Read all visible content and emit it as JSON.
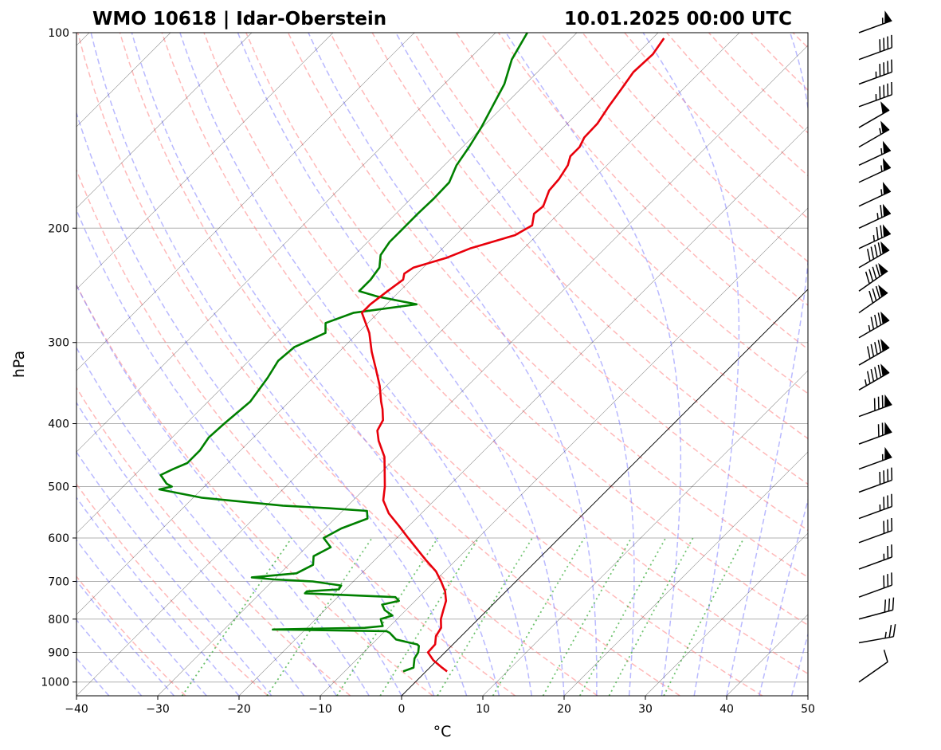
{
  "chart_data": {
    "type": "skew-t log-p sounding",
    "station_title": "WMO 10618 | Idar-Oberstein",
    "time_title": "10.01.2025 00:00 UTC",
    "xlabel": "°C",
    "ylabel": "hPa",
    "xlim": [
      -40,
      50
    ],
    "ylim_hPa": [
      1050,
      100
    ],
    "y_scale": "log",
    "x_ticks": [
      -40,
      -30,
      -20,
      -10,
      0,
      10,
      20,
      30,
      40,
      50
    ],
    "x_tick_labels": [
      "−40",
      "−30",
      "−20",
      "−10",
      "0",
      "10",
      "20",
      "30",
      "40",
      "50"
    ],
    "y_ticks": [
      1000,
      900,
      800,
      700,
      600,
      500,
      400,
      300,
      200,
      100
    ],
    "y_tick_labels": [
      "1000",
      "900",
      "800",
      "700",
      "600",
      "500",
      "400",
      "300",
      "200",
      "100"
    ],
    "grid": true,
    "colors": {
      "temperature": "#e8000b",
      "dewpoint": "#008000",
      "dry_adiabats": "#ff8080",
      "moist_adiabats": "#8080ff",
      "mixing_ratio": "#33aa33",
      "isotherms": "#000000",
      "grid": "#b0b0b0"
    },
    "temperature": {
      "p": [
        963,
        950,
        925,
        900,
        875,
        850,
        825,
        800,
        775,
        750,
        725,
        700,
        675,
        650,
        600,
        575,
        550,
        525,
        500,
        475,
        450,
        425,
        410,
        395,
        380,
        370,
        350,
        330,
        310,
        290,
        270,
        262,
        250,
        240,
        235,
        230,
        222,
        215,
        205,
        198,
        190,
        185,
        175,
        168,
        160,
        155,
        150,
        145,
        138,
        130,
        122,
        115,
        108,
        102
      ],
      "t": [
        2.6,
        1.5,
        -0.5,
        -2.1,
        -2.2,
        -3.1,
        -3.5,
        -4.6,
        -5.4,
        -6.2,
        -7.5,
        -9.2,
        -11.1,
        -13.6,
        -18.6,
        -21.2,
        -24.0,
        -26.3,
        -27.8,
        -29.6,
        -31.5,
        -34.2,
        -35.6,
        -36.2,
        -37.6,
        -38.7,
        -40.8,
        -43.3,
        -46.0,
        -48.6,
        -52.0,
        -52.0,
        -51.5,
        -51.0,
        -51.6,
        -51.2,
        -48.3,
        -46.6,
        -42.7,
        -41.8,
        -43.0,
        -42.8,
        -44.0,
        -44.2,
        -44.8,
        -45.6,
        -45.6,
        -46.2,
        -46.3,
        -47.0,
        -47.6,
        -48.2,
        -48.0,
        -48.6
      ]
    },
    "dewpoint": {
      "p": [
        963,
        950,
        920,
        900,
        880,
        875,
        860,
        850,
        840,
        835,
        830,
        825,
        820,
        800,
        790,
        775,
        760,
        750,
        740,
        730,
        725,
        720,
        710,
        700,
        695,
        690,
        680,
        660,
        640,
        620,
        600,
        580,
        560,
        545,
        540,
        535,
        520,
        505,
        500,
        495,
        480,
        470,
        460,
        440,
        420,
        400,
        370,
        340,
        320,
        305,
        290,
        280,
        270,
        262,
        255,
        250,
        240,
        230,
        220,
        210,
        200,
        190,
        180,
        170,
        160,
        150,
        140,
        130,
        120,
        110,
        100
      ],
      "t": [
        -2.8,
        -2.0,
        -3.0,
        -3.3,
        -4.0,
        -4.4,
        -7.6,
        -8.4,
        -9.2,
        -9.8,
        -24.0,
        -12.9,
        -10.9,
        -12.0,
        -11.0,
        -12.6,
        -13.6,
        -12.0,
        -12.9,
        -24.5,
        -24.5,
        -20.8,
        -21.0,
        -25.0,
        -30.0,
        -33.0,
        -28.0,
        -27.0,
        -28.0,
        -27.0,
        -29.0,
        -28.0,
        -26.0,
        -27.0,
        -32.0,
        -38.0,
        -49.0,
        -55.2,
        -54.0,
        -55.0,
        -56.8,
        -56.0,
        -55.0,
        -55.0,
        -55.5,
        -55.3,
        -54.8,
        -55.6,
        -56.4,
        -56.1,
        -54.0,
        -55.2,
        -53.0,
        -46.3,
        -52.0,
        -55.0,
        -55.0,
        -55.4,
        -56.8,
        -57.3,
        -57.3,
        -57.3,
        -57.2,
        -57.3,
        -58.5,
        -59.2,
        -60.1,
        -61.3,
        -62.6,
        -64.7,
        -66.1
      ]
    },
    "wind_barbs": [
      {
        "p": 100,
        "speed_kt": 55,
        "dir_deg": 250
      },
      {
        "p": 110,
        "speed_kt": 40,
        "dir_deg": 250
      },
      {
        "p": 120,
        "speed_kt": 45,
        "dir_deg": 250
      },
      {
        "p": 130,
        "speed_kt": 45,
        "dir_deg": 250
      },
      {
        "p": 140,
        "speed_kt": 50,
        "dir_deg": 240
      },
      {
        "p": 150,
        "speed_kt": 55,
        "dir_deg": 240
      },
      {
        "p": 160,
        "speed_kt": 55,
        "dir_deg": 245
      },
      {
        "p": 170,
        "speed_kt": 55,
        "dir_deg": 245
      },
      {
        "p": 185,
        "speed_kt": 55,
        "dir_deg": 245
      },
      {
        "p": 200,
        "speed_kt": 65,
        "dir_deg": 245
      },
      {
        "p": 215,
        "speed_kt": 75,
        "dir_deg": 245
      },
      {
        "p": 230,
        "speed_kt": 90,
        "dir_deg": 240
      },
      {
        "p": 250,
        "speed_kt": 90,
        "dir_deg": 235
      },
      {
        "p": 270,
        "speed_kt": 80,
        "dir_deg": 235
      },
      {
        "p": 295,
        "speed_kt": 85,
        "dir_deg": 240
      },
      {
        "p": 325,
        "speed_kt": 90,
        "dir_deg": 240
      },
      {
        "p": 355,
        "speed_kt": 95,
        "dir_deg": 240
      },
      {
        "p": 390,
        "speed_kt": 80,
        "dir_deg": 250
      },
      {
        "p": 430,
        "speed_kt": 70,
        "dir_deg": 250
      },
      {
        "p": 470,
        "speed_kt": 55,
        "dir_deg": 250
      },
      {
        "p": 510,
        "speed_kt": 40,
        "dir_deg": 250
      },
      {
        "p": 560,
        "speed_kt": 35,
        "dir_deg": 250
      },
      {
        "p": 610,
        "speed_kt": 30,
        "dir_deg": 250
      },
      {
        "p": 670,
        "speed_kt": 25,
        "dir_deg": 250
      },
      {
        "p": 740,
        "speed_kt": 30,
        "dir_deg": 250
      },
      {
        "p": 800,
        "speed_kt": 30,
        "dir_deg": 255
      },
      {
        "p": 870,
        "speed_kt": 25,
        "dir_deg": 260
      },
      {
        "p": 1000,
        "speed_kt": 10,
        "dir_deg": 235
      }
    ]
  }
}
